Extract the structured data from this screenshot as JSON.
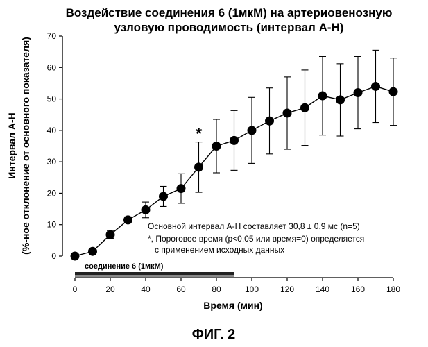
{
  "figure_label": "ФИГ. 2",
  "chart_data": {
    "type": "line",
    "title_line1": "Воздействие соединения 6 (1мкМ) на артериовенозную",
    "title_line2": "узловую проводимость (интервал А-Н)",
    "xlabel": "Время (мин)",
    "ylabel_line1": "Интервал А-Н",
    "ylabel_line2": "(%-ное отклонение от основного показателя)",
    "xlim": [
      0,
      180
    ],
    "ylim": [
      0,
      70
    ],
    "xticks": [
      "0",
      "20",
      "40",
      "60",
      "80",
      "100",
      "120",
      "140",
      "160",
      "180"
    ],
    "yticks": [
      "0",
      "10",
      "20",
      "30",
      "40",
      "50",
      "60",
      "70"
    ],
    "x": [
      0,
      10,
      20,
      30,
      40,
      50,
      60,
      70,
      80,
      90,
      100,
      110,
      120,
      130,
      140,
      150,
      160,
      170,
      180
    ],
    "y": [
      0,
      1.5,
      6.8,
      11.5,
      14.7,
      19,
      21.5,
      28.3,
      35,
      36.8,
      40,
      43,
      45.5,
      47.2,
      51,
      49.7,
      52,
      54,
      52.3
    ],
    "err": [
      0,
      0.8,
      1.2,
      1,
      2.5,
      3.2,
      4.7,
      8,
      8.5,
      9.5,
      10.5,
      10.5,
      11.5,
      12,
      12.5,
      11.5,
      11.5,
      11.5,
      10.7
    ],
    "significant_marker": {
      "x": 70,
      "label": "*"
    },
    "annotation_line1": "Основной интервал А-Н составляет 30,8 ± 0,9 мс (n=5)",
    "annotation_line2": "*, Пороговое время (p<0,05 или время=0) определяется",
    "annotation_line3": "с применением исходных данных",
    "infusion_bar": {
      "label": "соединение 6 (1мкМ)",
      "start": 0,
      "end": 90
    }
  }
}
